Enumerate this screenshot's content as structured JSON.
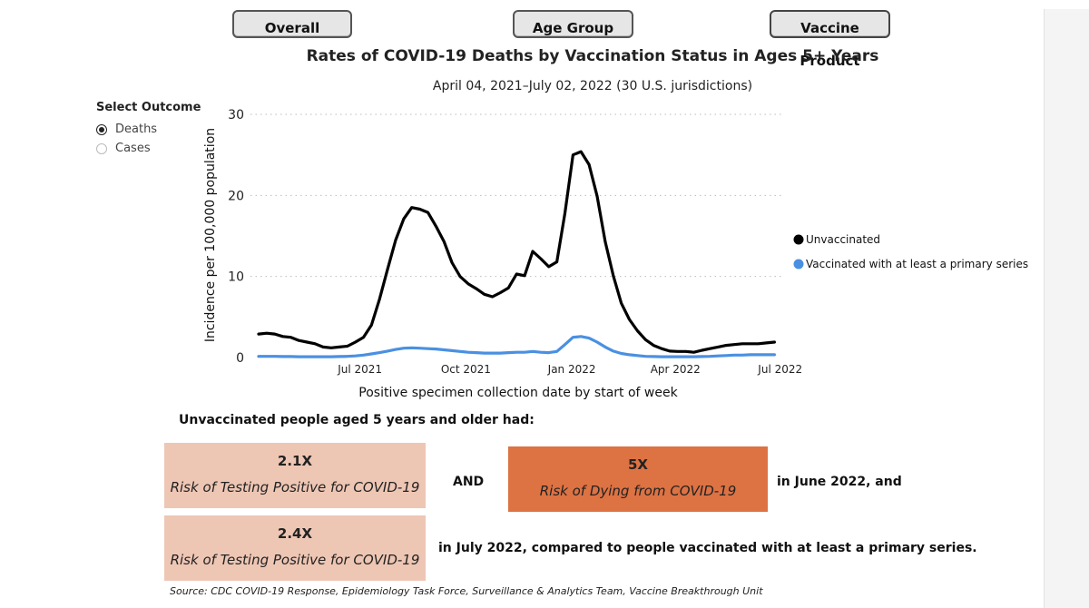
{
  "tabs": [
    {
      "label": "Overall"
    },
    {
      "label": "Age Group"
    },
    {
      "label": "Vaccine Product"
    }
  ],
  "outcome_selector": {
    "title": "Select Outcome",
    "options": [
      {
        "label": "Deaths",
        "selected": true
      },
      {
        "label": "Cases",
        "selected": false
      }
    ]
  },
  "chart_data": {
    "type": "line",
    "title": "Rates of COVID-19 Deaths by Vaccination Status in Ages 5+ Years",
    "subtitle": "April 04, 2021–July 02, 2022 (30 U.S. jurisdictions)",
    "xlabel": "Positive specimen collection date by start of week",
    "ylabel": "Incidence per 100,000 population",
    "ylim": [
      0,
      30
    ],
    "yticks": [
      0,
      10,
      20,
      30
    ],
    "xlim": [
      "2021-04-04",
      "2022-07-02"
    ],
    "xticks": [
      {
        "label": "Jul 2021",
        "date": "2021-07-01"
      },
      {
        "label": "Oct 2021",
        "date": "2021-10-01"
      },
      {
        "label": "Jan 2022",
        "date": "2022-01-01"
      },
      {
        "label": "Apr 2022",
        "date": "2022-04-01"
      },
      {
        "label": "Jul 2022",
        "date": "2022-07-01"
      }
    ],
    "grid": "horizontal dotted",
    "legend_position": "right",
    "series": [
      {
        "name": "Unvaccinated",
        "color": "#000000",
        "x": [
          "2021-04-04",
          "2021-04-11",
          "2021-04-18",
          "2021-04-25",
          "2021-05-02",
          "2021-05-09",
          "2021-05-16",
          "2021-05-23",
          "2021-05-30",
          "2021-06-06",
          "2021-06-13",
          "2021-06-20",
          "2021-06-27",
          "2021-07-04",
          "2021-07-11",
          "2021-07-18",
          "2021-07-25",
          "2021-08-01",
          "2021-08-08",
          "2021-08-15",
          "2021-08-22",
          "2021-08-29",
          "2021-09-05",
          "2021-09-12",
          "2021-09-19",
          "2021-09-26",
          "2021-10-03",
          "2021-10-10",
          "2021-10-17",
          "2021-10-24",
          "2021-10-31",
          "2021-11-07",
          "2021-11-14",
          "2021-11-21",
          "2021-11-28",
          "2021-12-05",
          "2021-12-12",
          "2021-12-19",
          "2021-12-26",
          "2022-01-02",
          "2022-01-09",
          "2022-01-16",
          "2022-01-23",
          "2022-01-30",
          "2022-02-06",
          "2022-02-13",
          "2022-02-20",
          "2022-02-27",
          "2022-03-06",
          "2022-03-13",
          "2022-03-20",
          "2022-03-27",
          "2022-04-03",
          "2022-04-10",
          "2022-04-17",
          "2022-04-24",
          "2022-05-01",
          "2022-05-08",
          "2022-05-15",
          "2022-05-22",
          "2022-05-29",
          "2022-06-05",
          "2022-06-12",
          "2022-06-19",
          "2022-06-26"
        ],
        "values": [
          2.9,
          3.0,
          2.9,
          2.6,
          2.5,
          2.1,
          1.9,
          1.7,
          1.3,
          1.2,
          1.3,
          1.4,
          1.9,
          2.5,
          4.0,
          7.2,
          10.9,
          14.5,
          17.1,
          18.5,
          18.3,
          17.9,
          16.2,
          14.3,
          11.7,
          10.0,
          9.1,
          8.5,
          7.8,
          7.5,
          8.0,
          8.6,
          10.3,
          10.1,
          13.1,
          12.2,
          11.2,
          11.8,
          17.8,
          25.0,
          25.4,
          23.8,
          19.9,
          14.3,
          10.1,
          6.7,
          4.7,
          3.3,
          2.2,
          1.5,
          1.1,
          0.8,
          0.75,
          0.75,
          0.65,
          0.9,
          1.1,
          1.3,
          1.5,
          1.6,
          1.7,
          1.7,
          1.7,
          1.8,
          1.9
        ]
      },
      {
        "name": "Vaccinated with at least a primary series",
        "color": "#4a90e2",
        "x": [
          "2021-04-04",
          "2021-04-11",
          "2021-04-18",
          "2021-04-25",
          "2021-05-02",
          "2021-05-09",
          "2021-05-16",
          "2021-05-23",
          "2021-05-30",
          "2021-06-06",
          "2021-06-13",
          "2021-06-20",
          "2021-06-27",
          "2021-07-04",
          "2021-07-11",
          "2021-07-18",
          "2021-07-25",
          "2021-08-01",
          "2021-08-08",
          "2021-08-15",
          "2021-08-22",
          "2021-08-29",
          "2021-09-05",
          "2021-09-12",
          "2021-09-19",
          "2021-09-26",
          "2021-10-03",
          "2021-10-10",
          "2021-10-17",
          "2021-10-24",
          "2021-10-31",
          "2021-11-07",
          "2021-11-14",
          "2021-11-21",
          "2021-11-28",
          "2021-12-05",
          "2021-12-12",
          "2021-12-19",
          "2021-12-26",
          "2022-01-02",
          "2022-01-09",
          "2022-01-16",
          "2022-01-23",
          "2022-01-30",
          "2022-02-06",
          "2022-02-13",
          "2022-02-20",
          "2022-02-27",
          "2022-03-06",
          "2022-03-13",
          "2022-03-20",
          "2022-03-27",
          "2022-04-03",
          "2022-04-10",
          "2022-04-17",
          "2022-04-24",
          "2022-05-01",
          "2022-05-08",
          "2022-05-15",
          "2022-05-22",
          "2022-05-29",
          "2022-06-05",
          "2022-06-12",
          "2022-06-19",
          "2022-06-26"
        ],
        "values": [
          0.15,
          0.15,
          0.15,
          0.12,
          0.12,
          0.1,
          0.1,
          0.1,
          0.1,
          0.1,
          0.12,
          0.15,
          0.2,
          0.3,
          0.45,
          0.6,
          0.8,
          1.0,
          1.15,
          1.2,
          1.15,
          1.1,
          1.05,
          0.95,
          0.85,
          0.75,
          0.65,
          0.6,
          0.55,
          0.55,
          0.55,
          0.6,
          0.65,
          0.65,
          0.75,
          0.65,
          0.6,
          0.75,
          1.6,
          2.5,
          2.6,
          2.4,
          1.9,
          1.3,
          0.8,
          0.5,
          0.35,
          0.25,
          0.15,
          0.12,
          0.1,
          0.1,
          0.1,
          0.1,
          0.1,
          0.12,
          0.15,
          0.2,
          0.25,
          0.3,
          0.3,
          0.35,
          0.35,
          0.35,
          0.35
        ]
      }
    ]
  },
  "summary": {
    "heading": "Unvaccinated people aged 5 years and older had:",
    "june_cases": {
      "value": "2.1X",
      "label": "Risk of Testing Positive for COVID-19",
      "color": "#eec6b4"
    },
    "june_deaths": {
      "value": "5X",
      "label": "Risk of Dying from COVID-19",
      "color": "#dd7243"
    },
    "july_cases": {
      "value": "2.4X",
      "label": "Risk of Testing Positive for COVID-19",
      "color": "#eec6b4"
    },
    "and_text": "AND",
    "june_text": "in June 2022, and",
    "july_text": "in July 2022, compared to people vaccinated with at least a primary series."
  },
  "source_note": "Source: CDC COVID-19 Response, Epidemiology Task Force, Surveillance & Analytics Team, Vaccine Breakthrough Unit"
}
